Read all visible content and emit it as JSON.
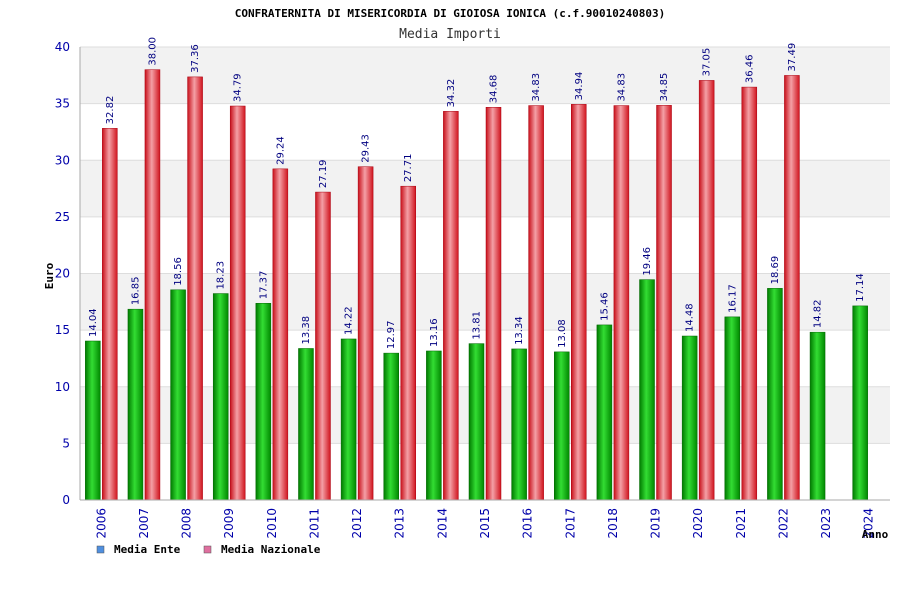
{
  "chart_data": {
    "type": "bar",
    "title": "CONFRATERNITA DI MISERICORDIA DI GIOIOSA IONICA (c.f.90010240803)",
    "subtitle": "Media Importi",
    "ylabel": "Euro",
    "xlabel": "Anno",
    "ylim": [
      0,
      40
    ],
    "yticks": [
      0,
      5,
      10,
      15,
      20,
      25,
      30,
      35,
      40
    ],
    "grid": true,
    "legend_position": "bottom-left",
    "categories": [
      "2006",
      "2007",
      "2008",
      "2009",
      "2010",
      "2011",
      "2012",
      "2013",
      "2014",
      "2015",
      "2016",
      "2017",
      "2018",
      "2019",
      "2020",
      "2021",
      "2022",
      "2023",
      "2024"
    ],
    "series": [
      {
        "name": "Media Ente",
        "color": "#00aa00",
        "legend_color": "#4f8fdf",
        "values": [
          14.04,
          16.85,
          18.56,
          18.23,
          17.37,
          13.38,
          14.22,
          12.97,
          13.16,
          13.81,
          13.34,
          13.08,
          15.46,
          19.46,
          14.48,
          16.17,
          18.69,
          14.82,
          17.14
        ],
        "labels": [
          "14.04",
          "16.85",
          "18.56",
          "18.23",
          "17.37",
          "13.38",
          "14.22",
          "12.97",
          "13.16",
          "13.81",
          "13.34",
          "13.08",
          "15.46",
          "19.46",
          "14.48",
          "16.17",
          "18.69",
          "14.82",
          "17.14"
        ]
      },
      {
        "name": "Media Nazionale",
        "color": "#e8202a",
        "legend_color": "#df6f9f",
        "values": [
          32.82,
          38.0,
          37.36,
          34.79,
          29.24,
          27.19,
          29.43,
          27.71,
          34.32,
          34.68,
          34.83,
          34.94,
          34.83,
          34.85,
          37.05,
          36.46,
          37.49,
          null,
          null
        ],
        "labels": [
          "32.82",
          "38.00",
          "37.36",
          "34.79",
          "29.24",
          "27.19",
          "29.43",
          "27.71",
          "34.32",
          "34.68",
          "34.83",
          "34.94",
          "34.83",
          "34.85",
          "37.05",
          "36.46",
          "37.49",
          "",
          ""
        ]
      }
    ]
  }
}
